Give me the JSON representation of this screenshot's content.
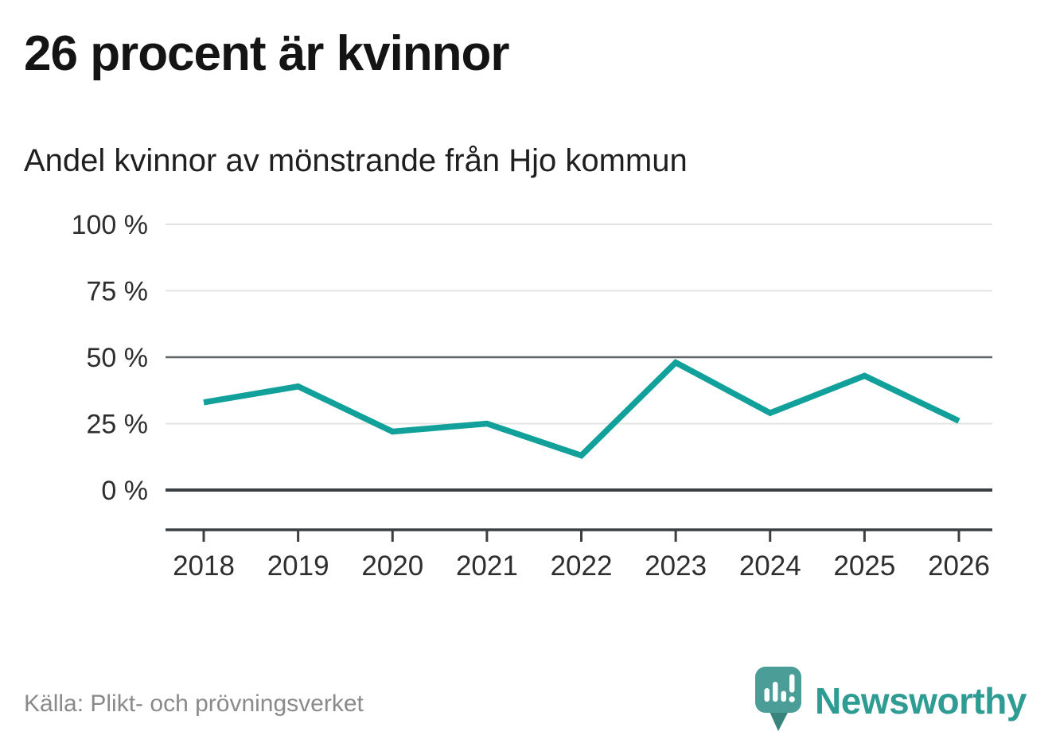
{
  "header": {
    "title": "26 procent är kvinnor",
    "subtitle": "Andel kvinnor av mönstrande från Hjo kommun"
  },
  "chart_data": {
    "type": "line",
    "title": "26 procent är kvinnor",
    "subtitle": "Andel kvinnor av mönstrande från Hjo kommun",
    "x": [
      "2018",
      "2019",
      "2020",
      "2021",
      "2022",
      "2023",
      "2024",
      "2025",
      "2026"
    ],
    "series": [
      {
        "name": "Andel kvinnor av mönstrande",
        "values": [
          33,
          39,
          22,
          25,
          13,
          48,
          29,
          43,
          26
        ]
      }
    ],
    "unit": "%",
    "ylim": [
      0,
      100
    ],
    "yticks": [
      0,
      25,
      50,
      75,
      100
    ],
    "ytick_labels": [
      "0 %",
      "25 %",
      "50 %",
      "75 %",
      "100 %"
    ],
    "emphasized_yticks": [
      0,
      50
    ],
    "grid": "horizontal",
    "legend": "none",
    "source": "Källa: Plikt- och prövningsverket"
  },
  "footer": {
    "source": "Källa: Plikt- och prövningsverket",
    "brand": "Newsworthy"
  },
  "icons": {
    "logo": "newsworthy-speech-bubble-barchart-icon"
  },
  "colors": {
    "line": "#12a19a",
    "grid_light": "#e3e3e3",
    "grid_emphasis": "#5f6466",
    "axis": "#3b3f42",
    "title": "#141414",
    "subtitle": "#1f1f1f",
    "tick_label": "#2e2e2e",
    "source_text": "#8a8a8a",
    "brand_teal": "#2f9c93",
    "logo_bubble": "#4a9e97",
    "logo_tail": "#38837c"
  }
}
